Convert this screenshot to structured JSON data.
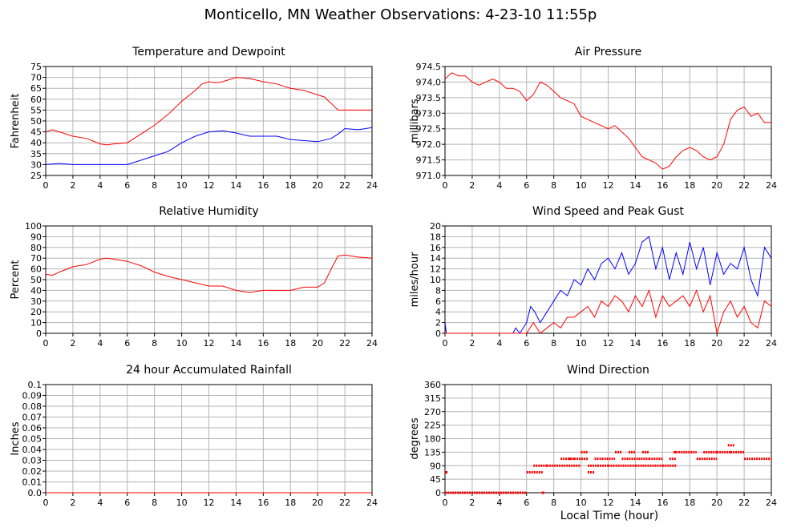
{
  "title": "Monticello, MN Weather Observations: 4-23-10 11:55p",
  "xlabel": "Local Time (hour)",
  "chart_data": [
    {
      "id": "temp",
      "type": "line",
      "title": "Temperature and Dewpoint",
      "xlabel": "",
      "ylabel": "Fahrenheit",
      "xlim": [
        0,
        24
      ],
      "ylim": [
        25,
        75
      ],
      "xticks": [
        0,
        2,
        4,
        6,
        8,
        10,
        12,
        14,
        16,
        18,
        20,
        22,
        24
      ],
      "yticks": [
        25,
        30,
        35,
        40,
        45,
        50,
        55,
        60,
        65,
        70,
        75
      ],
      "ytick_labels": [
        "25",
        "30",
        "35",
        "40",
        "45",
        "50",
        "55",
        "60",
        "65",
        "70",
        "75"
      ],
      "grid": true,
      "series": [
        {
          "color": "#ff0000",
          "x": [
            0,
            0.5,
            1,
            2,
            3,
            4,
            4.5,
            5,
            6,
            7,
            8,
            9,
            10,
            11,
            11.5,
            12,
            12.5,
            13,
            14,
            15,
            16,
            17,
            18,
            19,
            20,
            20.5,
            21,
            21.5,
            22,
            23,
            24
          ],
          "y": [
            45,
            46,
            45,
            43,
            42,
            39.5,
            39,
            39.5,
            40,
            44,
            48,
            53,
            59,
            64,
            67,
            68,
            67.5,
            68,
            70,
            69.5,
            68,
            67,
            65,
            64,
            62,
            61,
            58,
            55,
            55,
            55,
            55
          ]
        },
        {
          "color": "#0000ff",
          "x": [
            0,
            1,
            2,
            3,
            4,
            5,
            6,
            7,
            8,
            9,
            10,
            11,
            12,
            13,
            14,
            15,
            16,
            17,
            18,
            19,
            20,
            21,
            21.5,
            22,
            23,
            24
          ],
          "y": [
            30,
            30.5,
            30,
            30,
            30,
            30,
            30,
            32,
            34,
            36,
            40,
            43,
            45,
            45.5,
            44.5,
            43,
            43,
            43,
            41.5,
            41,
            40.5,
            42,
            44,
            46.5,
            46,
            47
          ]
        }
      ]
    },
    {
      "id": "pressure",
      "type": "line",
      "title": "Air Pressure",
      "xlabel": "",
      "ylabel": "millibars",
      "xlim": [
        0,
        24
      ],
      "ylim": [
        971.0,
        974.5
      ],
      "xticks": [
        0,
        2,
        4,
        6,
        8,
        10,
        12,
        14,
        16,
        18,
        20,
        22,
        24
      ],
      "yticks": [
        971.0,
        971.5,
        972.0,
        972.5,
        973.0,
        973.5,
        974.0,
        974.5
      ],
      "ytick_labels": [
        "971.0",
        "971.5",
        "972.0",
        "972.5",
        "973.0",
        "973.5",
        "974.0",
        "974.5"
      ],
      "grid": true,
      "series": [
        {
          "color": "#ff0000",
          "x": [
            0,
            0.5,
            1,
            1.5,
            2,
            2.5,
            3,
            3.5,
            4,
            4.5,
            5,
            5.5,
            6,
            6.5,
            7,
            7.5,
            8,
            8.5,
            9,
            9.5,
            10,
            10.5,
            11,
            11.5,
            12,
            12.5,
            13,
            13.5,
            14,
            14.5,
            15,
            15.5,
            16,
            16.5,
            17,
            17.5,
            18,
            18.5,
            19,
            19.5,
            20,
            20.5,
            21,
            21.5,
            22,
            22.5,
            23,
            23.5,
            24
          ],
          "y": [
            974.1,
            974.3,
            974.2,
            974.2,
            974.0,
            973.9,
            974.0,
            974.1,
            974.0,
            973.8,
            973.8,
            973.7,
            973.4,
            973.6,
            974.0,
            973.9,
            973.7,
            973.5,
            973.4,
            973.3,
            972.9,
            972.8,
            972.7,
            972.6,
            972.5,
            972.6,
            972.4,
            972.2,
            971.9,
            971.6,
            971.5,
            971.4,
            971.2,
            971.3,
            971.6,
            971.8,
            971.9,
            971.8,
            971.6,
            971.5,
            971.6,
            972.0,
            972.8,
            973.1,
            973.2,
            972.9,
            973.0,
            972.7,
            972.7
          ]
        }
      ]
    },
    {
      "id": "rh",
      "type": "line",
      "title": "Relative Humidity",
      "xlabel": "",
      "ylabel": "Percent",
      "xlim": [
        0,
        24
      ],
      "ylim": [
        0,
        100
      ],
      "xticks": [
        0,
        2,
        4,
        6,
        8,
        10,
        12,
        14,
        16,
        18,
        20,
        22,
        24
      ],
      "yticks": [
        0,
        10,
        20,
        30,
        40,
        50,
        60,
        70,
        80,
        90,
        100
      ],
      "ytick_labels": [
        "0",
        "10",
        "20",
        "30",
        "40",
        "50",
        "60",
        "70",
        "80",
        "90",
        "100"
      ],
      "grid": true,
      "series": [
        {
          "color": "#ff0000",
          "x": [
            0,
            0.5,
            1,
            2,
            3,
            4,
            4.5,
            5,
            6,
            7,
            8,
            9,
            10,
            11,
            12,
            13,
            14,
            15,
            16,
            17,
            18,
            19,
            20,
            20.5,
            21,
            21.5,
            22,
            23,
            24
          ],
          "y": [
            55,
            54,
            57,
            62,
            64,
            69,
            70,
            69,
            67,
            63,
            57,
            53,
            50,
            47,
            44,
            44,
            40,
            38,
            40,
            40,
            40,
            43,
            43,
            47,
            60,
            72,
            73,
            71,
            70
          ]
        }
      ]
    },
    {
      "id": "wind",
      "type": "line",
      "title": "Wind Speed and Peak Gust",
      "xlabel": "",
      "ylabel": "miles/hour",
      "xlim": [
        0,
        24
      ],
      "ylim": [
        0,
        20
      ],
      "xticks": [
        0,
        2,
        4,
        6,
        8,
        10,
        12,
        14,
        16,
        18,
        20,
        22,
        24
      ],
      "yticks": [
        0,
        2,
        4,
        6,
        8,
        10,
        12,
        14,
        16,
        18,
        20
      ],
      "ytick_labels": [
        "0",
        "2",
        "4",
        "6",
        "8",
        "10",
        "12",
        "14",
        "16",
        "18",
        "20"
      ],
      "grid": true,
      "series": [
        {
          "color": "#0000ff",
          "x": [
            0,
            0.1,
            0.2,
            5,
            5.2,
            5.5,
            6,
            6.3,
            6.6,
            7,
            7.5,
            8,
            8.5,
            9,
            9.5,
            10,
            10.5,
            11,
            11.5,
            12,
            12.5,
            13,
            13.5,
            14,
            14.5,
            15,
            15.5,
            16,
            16.5,
            17,
            17.5,
            18,
            18.5,
            19,
            19.5,
            20,
            20.5,
            21,
            21.5,
            22,
            22.5,
            23,
            23.5,
            24
          ],
          "y": [
            2,
            0,
            0,
            0,
            1,
            0,
            2,
            5,
            4,
            2,
            4,
            6,
            8,
            7,
            10,
            9,
            12,
            10,
            13,
            14,
            12,
            15,
            11,
            13,
            17,
            18,
            12,
            16,
            10,
            15,
            11,
            17,
            12,
            16,
            9,
            15,
            11,
            13,
            12,
            16,
            10,
            7,
            16,
            14
          ]
        },
        {
          "color": "#ff0000",
          "x": [
            0,
            5,
            6,
            6.5,
            7,
            7.5,
            8,
            8.5,
            9,
            9.5,
            10,
            10.5,
            11,
            11.5,
            12,
            12.5,
            13,
            13.5,
            14,
            14.5,
            15,
            15.5,
            16,
            16.5,
            17,
            17.5,
            18,
            18.5,
            19,
            19.5,
            20,
            20.5,
            21,
            21.5,
            22,
            22.5,
            23,
            23.5,
            24
          ],
          "y": [
            0,
            0,
            0,
            2,
            0,
            1,
            2,
            1,
            3,
            3,
            4,
            5,
            3,
            6,
            5,
            7,
            6,
            4,
            7,
            5,
            8,
            3,
            7,
            5,
            6,
            7,
            5,
            8,
            4,
            7,
            0,
            4,
            6,
            3,
            5,
            2,
            1,
            6,
            5
          ]
        }
      ]
    },
    {
      "id": "rain",
      "type": "line",
      "title": "24 hour Accumulated Rainfall",
      "xlabel": "",
      "ylabel": "Inches",
      "xlim": [
        0,
        24
      ],
      "ylim": [
        0,
        0.1
      ],
      "xticks": [
        0,
        2,
        4,
        6,
        8,
        10,
        12,
        14,
        16,
        18,
        20,
        22,
        24
      ],
      "yticks": [
        0,
        0.01,
        0.02,
        0.03,
        0.04,
        0.05,
        0.06,
        0.07,
        0.08,
        0.09,
        0.1
      ],
      "ytick_labels": [
        "0.0",
        "0.01",
        "0.02",
        "0.03",
        "0.04",
        "0.05",
        "0.06",
        "0.07",
        "0.08",
        "0.09",
        "0.1"
      ],
      "grid": true,
      "series": [
        {
          "color": "#ff0000",
          "x": [
            0,
            24
          ],
          "y": [
            0,
            0
          ]
        }
      ]
    },
    {
      "id": "dir",
      "type": "scatter",
      "title": "Wind Direction",
      "xlabel": "",
      "ylabel": "degrees",
      "xlim": [
        0,
        24
      ],
      "ylim": [
        0,
        360
      ],
      "xticks": [
        0,
        2,
        4,
        6,
        8,
        10,
        12,
        14,
        16,
        18,
        20,
        22,
        24
      ],
      "yticks": [
        0,
        45,
        90,
        135,
        180,
        225,
        270,
        315,
        360
      ],
      "ytick_labels": [
        "0",
        "45",
        "90",
        "135",
        "180",
        "225",
        "270",
        "315",
        "360"
      ],
      "grid": true,
      "series": [
        {
          "color": "#ff0000",
          "segments": [
            [
              0,
              6,
              0
            ],
            [
              6,
              7.2,
              68
            ],
            [
              6.5,
              7.5,
              90
            ],
            [
              7.5,
              10,
              90
            ],
            [
              8.5,
              9.5,
              113
            ],
            [
              9.5,
              10.5,
              113
            ],
            [
              10,
              10.5,
              135
            ],
            [
              10.5,
              11,
              68
            ],
            [
              10.5,
              12,
              90
            ],
            [
              11,
              12.5,
              113
            ],
            [
              12,
              14,
              90
            ],
            [
              12.5,
              13,
              135
            ],
            [
              13,
              15,
              113
            ],
            [
              13.5,
              14,
              135
            ],
            [
              14,
              16,
              90
            ],
            [
              14.5,
              15,
              135
            ],
            [
              15,
              16,
              113
            ],
            [
              16,
              17,
              90
            ],
            [
              16.5,
              17,
              113
            ],
            [
              17,
              18.5,
              135
            ],
            [
              18.5,
              20,
              113
            ],
            [
              19,
              20,
              135
            ],
            [
              20,
              21,
              135
            ],
            [
              20.8,
              21.3,
              158
            ],
            [
              21,
              22,
              135
            ],
            [
              22,
              24,
              113
            ]
          ],
          "points": [
            [
              0.1,
              68
            ],
            [
              7.2,
              0
            ],
            [
              9.2,
              113
            ],
            [
              16.9,
              135
            ]
          ]
        }
      ]
    }
  ]
}
